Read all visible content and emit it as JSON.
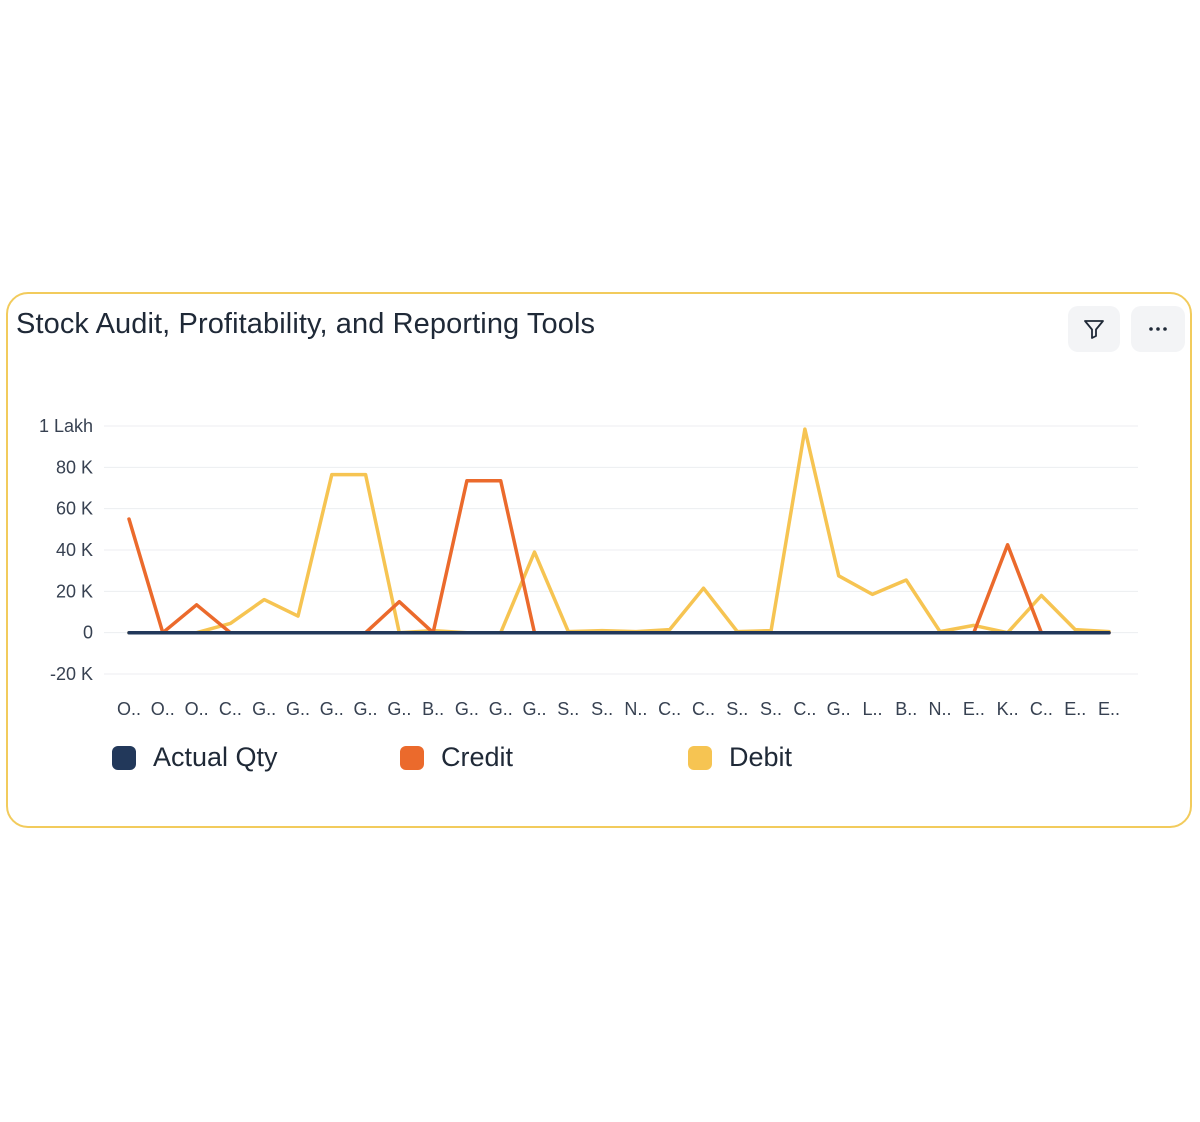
{
  "widget": {
    "title": "Stock Audit, Profitability, and Reporting Tools",
    "filter_icon": "filter-icon",
    "more_icon": "more-horizontal-icon"
  },
  "chart_data": {
    "type": "line",
    "title": "Stock Audit, Profitability, and Reporting Tools",
    "xlabel": "",
    "ylabel": "",
    "ylim": [
      -20000,
      100000
    ],
    "y_ticks": [
      {
        "value": 100000,
        "label": "1 Lakh"
      },
      {
        "value": 80000,
        "label": "80 K"
      },
      {
        "value": 60000,
        "label": "60 K"
      },
      {
        "value": 40000,
        "label": "40 K"
      },
      {
        "value": 20000,
        "label": "20 K"
      },
      {
        "value": 0,
        "label": "0"
      },
      {
        "value": -20000,
        "label": "-20 K"
      }
    ],
    "categories": [
      "O..",
      "O..",
      "O..",
      "C..",
      "G..",
      "G..",
      "G..",
      "G..",
      "G..",
      "B..",
      "G..",
      "G..",
      "G..",
      "S..",
      "S..",
      "N..",
      "C..",
      "C..",
      "S..",
      "S..",
      "C..",
      "G..",
      "L..",
      "B..",
      "N..",
      "E..",
      "K..",
      "C..",
      "E..",
      "E.."
    ],
    "grid": true,
    "legend_position": "bottom",
    "series": [
      {
        "name": "Actual Qty",
        "color": "#22385a",
        "values": [
          0,
          0,
          0,
          0,
          0,
          0,
          0,
          0,
          0,
          0,
          0,
          0,
          0,
          0,
          0,
          0,
          0,
          0,
          0,
          0,
          0,
          0,
          0,
          0,
          0,
          0,
          0,
          0,
          0,
          0
        ]
      },
      {
        "name": "Credit",
        "color": "#eb6a2c",
        "values": [
          55000,
          0,
          13500,
          0,
          0,
          0,
          0,
          0,
          15000,
          0,
          73500,
          73500,
          0,
          0,
          0,
          0,
          0,
          0,
          0,
          0,
          0,
          0,
          0,
          0,
          0,
          0,
          42500,
          0,
          0,
          0
        ]
      },
      {
        "name": "Debit",
        "color": "#f6c452",
        "values": [
          0,
          0,
          0,
          4500,
          16000,
          8000,
          76500,
          76500,
          0,
          1000,
          0,
          0,
          39000,
          500,
          1000,
          500,
          1500,
          21500,
          500,
          1000,
          98500,
          27500,
          18500,
          25500,
          500,
          3500,
          0,
          18000,
          1500,
          500
        ]
      }
    ]
  }
}
